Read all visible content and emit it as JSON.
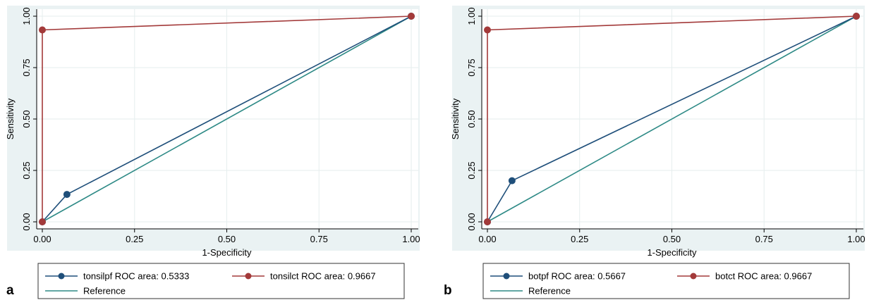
{
  "chart_data": [
    {
      "type": "line",
      "panel_label": "a",
      "xlabel": "1-Specificity",
      "ylabel": "Sensitivity",
      "xlim": [
        0,
        1
      ],
      "ylim": [
        0,
        1
      ],
      "x_ticks": [
        "0.00",
        "0.25",
        "0.50",
        "0.75",
        "1.00"
      ],
      "y_ticks": [
        "0.00",
        "0.25",
        "0.50",
        "0.75",
        "1.00"
      ],
      "grid": true,
      "legend_position": "bottom",
      "series": [
        {
          "name": "tonsilpf ROC area: 0.5333",
          "color": "#1f4f7a",
          "markers": true,
          "points": [
            [
              0,
              0
            ],
            [
              0.0667,
              0.1333
            ],
            [
              1,
              1
            ]
          ]
        },
        {
          "name": "tonsilct ROC area: 0.9667",
          "color": "#a33a3a",
          "markers": true,
          "points": [
            [
              0,
              0
            ],
            [
              0,
              0.9333
            ],
            [
              1,
              1
            ]
          ]
        },
        {
          "name": "Reference",
          "color": "#2e8a86",
          "markers": false,
          "points": [
            [
              0,
              0
            ],
            [
              1,
              1
            ]
          ]
        }
      ]
    },
    {
      "type": "line",
      "panel_label": "b",
      "xlabel": "1-Specificity",
      "ylabel": "Sensitivity",
      "xlim": [
        0,
        1
      ],
      "ylim": [
        0,
        1
      ],
      "x_ticks": [
        "0.00",
        "0.25",
        "0.50",
        "0.75",
        "1.00"
      ],
      "y_ticks": [
        "0.00",
        "0.25",
        "0.50",
        "0.75",
        "1.00"
      ],
      "grid": true,
      "legend_position": "bottom",
      "series": [
        {
          "name": "botpf ROC area: 0.5667",
          "color": "#1f4f7a",
          "markers": true,
          "points": [
            [
              0,
              0
            ],
            [
              0.0667,
              0.2
            ],
            [
              1,
              1
            ]
          ]
        },
        {
          "name": "botct ROC area: 0.9667",
          "color": "#a33a3a",
          "markers": true,
          "points": [
            [
              0,
              0
            ],
            [
              0,
              0.9333
            ],
            [
              1,
              1
            ]
          ]
        },
        {
          "name": "Reference",
          "color": "#2e8a86",
          "markers": false,
          "points": [
            [
              0,
              0
            ],
            [
              1,
              1
            ]
          ]
        }
      ]
    }
  ]
}
